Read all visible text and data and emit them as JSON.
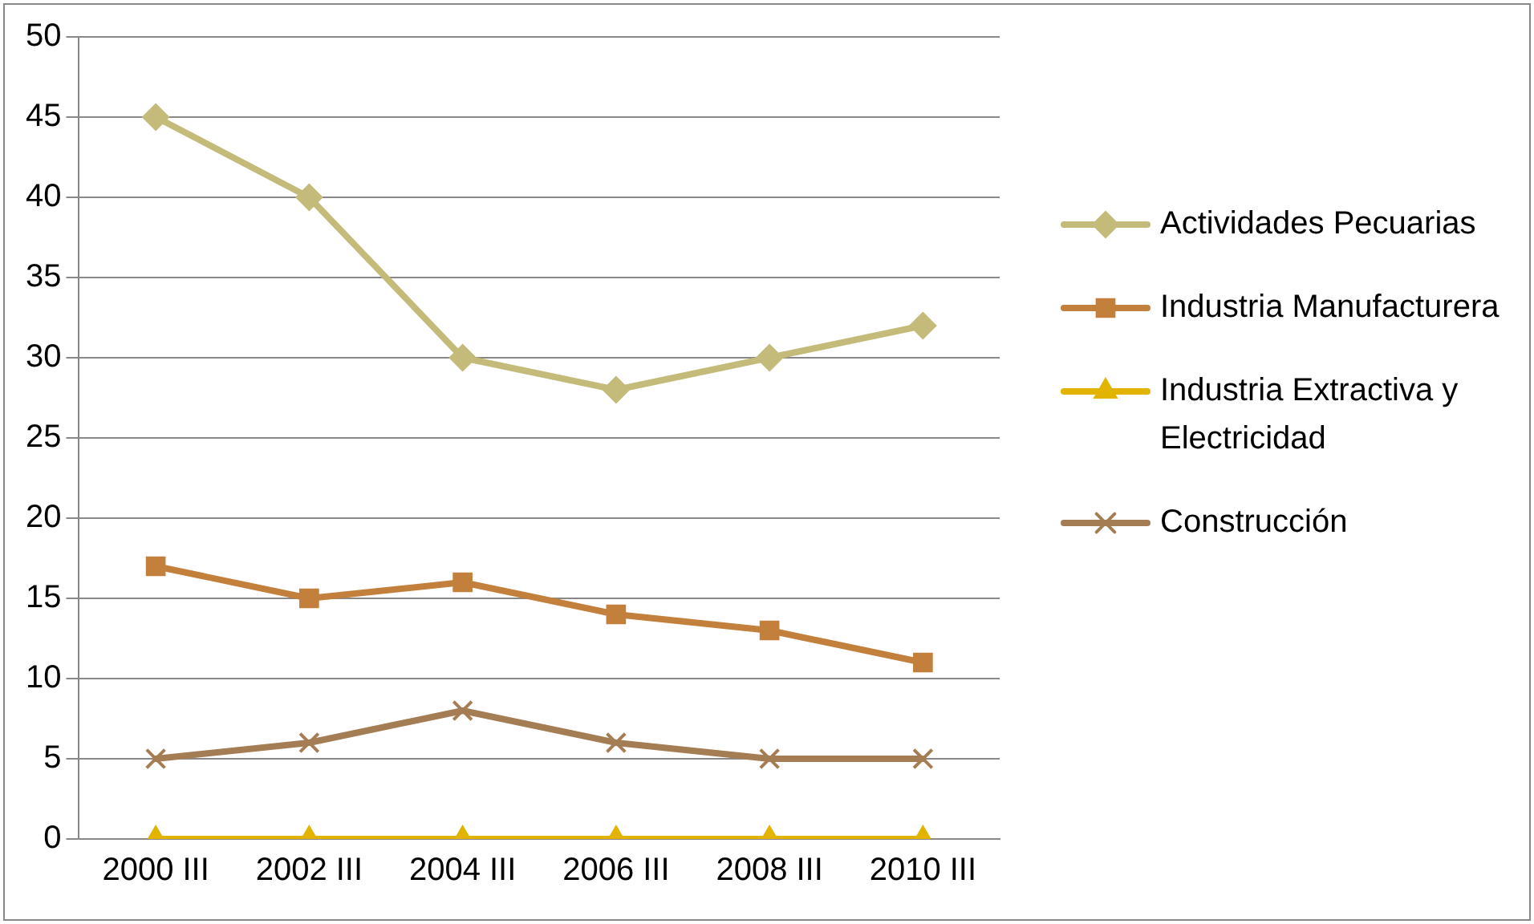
{
  "chart_data": {
    "type": "line",
    "categories": [
      "2000 III",
      "2002 III",
      "2004 III",
      "2006 III",
      "2008 III",
      "2010 III"
    ],
    "series": [
      {
        "name": "Actividades Pecuarias",
        "color": "#c4bb7b",
        "marker": "diamond",
        "values": [
          45,
          40,
          30,
          28,
          30,
          32
        ]
      },
      {
        "name": "Industria Manufacturera",
        "color": "#c2803c",
        "marker": "square",
        "values": [
          17,
          15,
          16,
          14,
          13,
          11
        ]
      },
      {
        "name": "Industria Extractiva y Electricidad",
        "color": "#e2b400",
        "marker": "triangle",
        "values": [
          0,
          0,
          0,
          0,
          0,
          0
        ]
      },
      {
        "name": "Construcción",
        "color": "#a47d55",
        "marker": "cross",
        "values": [
          5,
          6,
          8,
          6,
          5,
          5
        ]
      }
    ],
    "ylim": [
      0,
      50
    ],
    "yticks": [
      0,
      5,
      10,
      15,
      20,
      25,
      30,
      35,
      40,
      45,
      50
    ],
    "grid": "y",
    "legend": "right",
    "line_style": "solid"
  }
}
